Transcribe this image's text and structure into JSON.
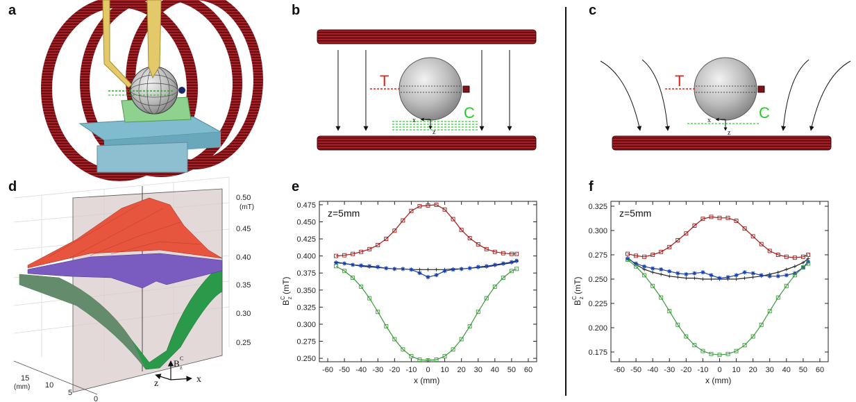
{
  "panels": {
    "a": {
      "label": "a"
    },
    "b": {
      "label": "b",
      "t_label": "T",
      "c_label": "C",
      "x_label": "x",
      "z_label": "z"
    },
    "c": {
      "label": "c",
      "t_label": "T",
      "c_label": "C",
      "x_label": "x",
      "z_label": "z"
    },
    "d": {
      "label": "d",
      "z_ticks": [
        "0.50",
        "0.45",
        "0.40",
        "0.35",
        "0.30",
        "0.25"
      ],
      "z_unit": "(mT)",
      "depth_ticks": [
        "15",
        "10",
        "5",
        "0"
      ],
      "depth_unit": "(mm)",
      "axis_b": "B",
      "axis_b_sub": "z",
      "axis_b_sup": "C",
      "axis_z": "z",
      "axis_x": "x"
    },
    "e": {
      "label": "e"
    },
    "f": {
      "label": "f"
    }
  },
  "colors": {
    "coil": "#7a1418",
    "coil_stripe": "#b02a30",
    "T": "#e0201a",
    "C": "#22cc22",
    "red_series": "#a01818",
    "blue_series": "#1a3fa8",
    "black_series": "#222222",
    "green_series": "#3a9a3a"
  },
  "chart_data": [
    {
      "id": "e",
      "type": "line",
      "annotation": "z=5mm",
      "ylabel_main": "B",
      "ylabel_sup": "C",
      "ylabel_sub": "z",
      "ylabel_unit": " (mT)",
      "xlabel": "x (mm)",
      "xlim": [
        -65,
        65
      ],
      "ylim": [
        0.245,
        0.48
      ],
      "xticks": [
        -60,
        -50,
        -40,
        -30,
        -20,
        -10,
        0,
        10,
        20,
        30,
        40,
        50,
        60
      ],
      "yticks": [
        0.25,
        0.275,
        0.3,
        0.325,
        0.35,
        0.375,
        0.4,
        0.425,
        0.45,
        0.475
      ],
      "ytick_labels": [
        "0.250",
        "0.275",
        "0.300",
        "0.325",
        "0.350",
        "0.375",
        "0.400",
        "0.425",
        "0.450",
        "0.475"
      ],
      "x": [
        -55,
        -50,
        -45,
        -40,
        -35,
        -30,
        -25,
        -20,
        -15,
        -10,
        -5,
        0,
        5,
        10,
        15,
        20,
        25,
        30,
        35,
        40,
        45,
        50,
        53
      ],
      "series": [
        {
          "color": "#a01818",
          "marker": "square",
          "values": [
            0.4,
            0.401,
            0.403,
            0.406,
            0.41,
            0.416,
            0.425,
            0.437,
            0.452,
            0.466,
            0.473,
            0.474,
            0.475,
            0.468,
            0.454,
            0.438,
            0.426,
            0.417,
            0.41,
            0.406,
            0.404,
            0.403,
            0.403
          ]
        },
        {
          "color": "#222222",
          "marker": "plus",
          "values": [
            0.391,
            0.389,
            0.387,
            0.385,
            0.384,
            0.383,
            0.382,
            0.381,
            0.381,
            0.38,
            0.38,
            0.38,
            0.38,
            0.38,
            0.381,
            0.381,
            0.382,
            0.383,
            0.384,
            0.386,
            0.388,
            0.39,
            0.392
          ]
        },
        {
          "color": "#1a3fa8",
          "marker": "star",
          "values": [
            0.39,
            0.389,
            0.387,
            0.386,
            0.385,
            0.384,
            0.382,
            0.381,
            0.381,
            0.38,
            0.375,
            0.369,
            0.372,
            0.378,
            0.38,
            0.381,
            0.382,
            0.384,
            0.385,
            0.387,
            0.389,
            0.391,
            0.393
          ]
        },
        {
          "color": "#3a9a3a",
          "marker": "square",
          "values": [
            0.385,
            0.378,
            0.368,
            0.355,
            0.338,
            0.318,
            0.297,
            0.278,
            0.263,
            0.253,
            0.248,
            0.247,
            0.248,
            0.253,
            0.263,
            0.278,
            0.297,
            0.318,
            0.338,
            0.355,
            0.368,
            0.378,
            0.381
          ]
        }
      ]
    },
    {
      "id": "f",
      "type": "line",
      "annotation": "z=5mm",
      "ylabel_main": "B",
      "ylabel_sup": "C",
      "ylabel_sub": "z",
      "ylabel_unit": " (mT)",
      "xlabel": "x (mm)",
      "xlim": [
        -65,
        65
      ],
      "ylim": [
        0.165,
        0.33
      ],
      "xticks": [
        -60,
        -50,
        -40,
        -30,
        -20,
        -10,
        0,
        10,
        20,
        30,
        40,
        50,
        60
      ],
      "yticks": [
        0.175,
        0.2,
        0.225,
        0.25,
        0.275,
        0.3,
        0.325
      ],
      "ytick_labels": [
        "0.175",
        "0.200",
        "0.225",
        "0.250",
        "0.275",
        "0.300",
        "0.325"
      ],
      "x": [
        -55,
        -50,
        -45,
        -40,
        -35,
        -30,
        -25,
        -20,
        -15,
        -10,
        -5,
        0,
        5,
        10,
        15,
        20,
        25,
        30,
        35,
        40,
        45,
        50,
        53
      ],
      "series": [
        {
          "color": "#a01818",
          "marker": "square",
          "values": [
            0.276,
            0.274,
            0.273,
            0.275,
            0.278,
            0.283,
            0.29,
            0.297,
            0.305,
            0.312,
            0.314,
            0.313,
            0.313,
            0.31,
            0.302,
            0.294,
            0.286,
            0.279,
            0.275,
            0.273,
            0.272,
            0.273,
            0.275
          ]
        },
        {
          "color": "#222222",
          "marker": "plus",
          "values": [
            0.272,
            0.265,
            0.26,
            0.257,
            0.255,
            0.253,
            0.252,
            0.251,
            0.251,
            0.25,
            0.25,
            0.25,
            0.25,
            0.25,
            0.251,
            0.252,
            0.253,
            0.255,
            0.257,
            0.26,
            0.263,
            0.267,
            0.271
          ]
        },
        {
          "color": "#1a3fa8",
          "marker": "star",
          "values": [
            0.271,
            0.266,
            0.263,
            0.261,
            0.26,
            0.258,
            0.256,
            0.255,
            0.256,
            0.257,
            0.254,
            0.251,
            0.252,
            0.254,
            0.257,
            0.256,
            0.254,
            0.253,
            0.253,
            0.254,
            0.256,
            0.262,
            0.268
          ]
        },
        {
          "color": "#3a9a3a",
          "marker": "square",
          "values": [
            0.27,
            0.263,
            0.254,
            0.243,
            0.231,
            0.217,
            0.203,
            0.191,
            0.182,
            0.176,
            0.173,
            0.172,
            0.173,
            0.176,
            0.182,
            0.191,
            0.203,
            0.217,
            0.231,
            0.243,
            0.254,
            0.262,
            0.266
          ]
        }
      ]
    }
  ]
}
